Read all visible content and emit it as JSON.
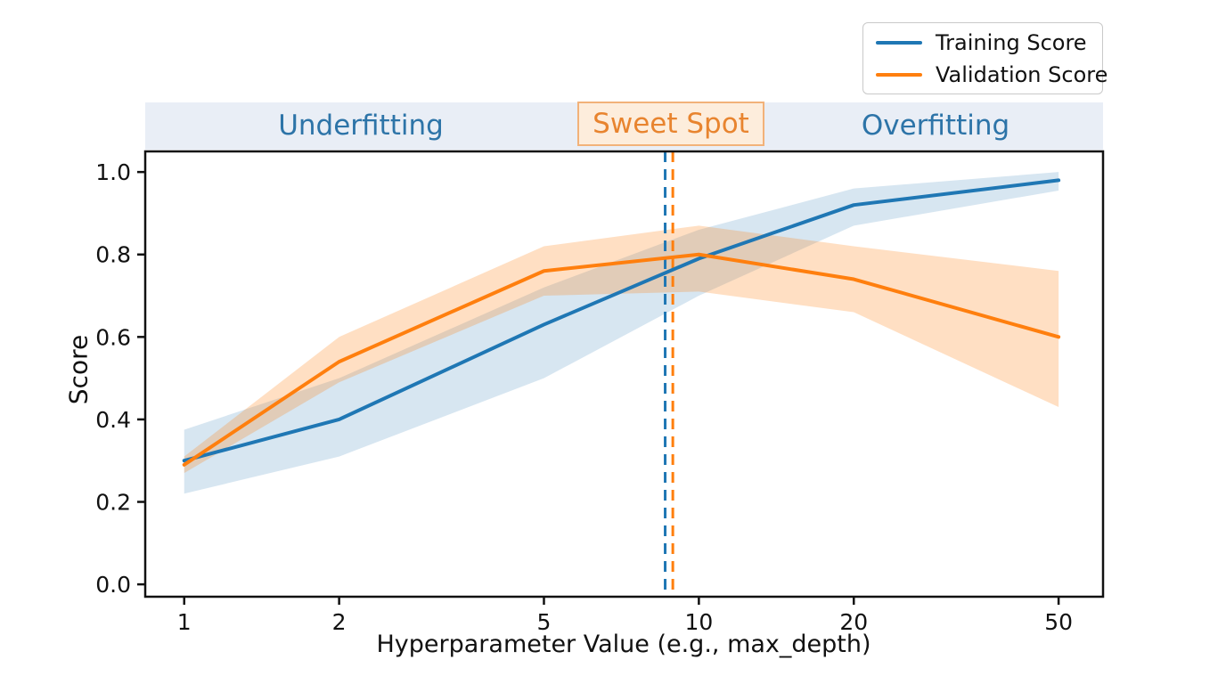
{
  "page": {
    "background": "#ffffff"
  },
  "legend": {
    "items": [
      {
        "label": "Training Score",
        "color": "#1f77b4"
      },
      {
        "label": "Validation Score",
        "color": "#ff7f0e"
      }
    ]
  },
  "regions": {
    "band_background": "#e9eef6",
    "underfitting": {
      "label": "Underfitting",
      "text_color": "#2d74a8"
    },
    "sweet_spot": {
      "label": "Sweet Spot",
      "text_color": "#e8842f",
      "box_background": "#fdeddc",
      "box_border": "#f2b279"
    },
    "overfitting": {
      "label": "Overfitting",
      "text_color": "#2d74a8"
    }
  },
  "chart_data": {
    "type": "line",
    "title": "",
    "xlabel": "Hyperparameter Value (e.g., max_depth)",
    "ylabel": "Score",
    "x_scale": "log",
    "x": [
      1,
      2,
      5,
      10,
      20,
      50
    ],
    "x_tick_labels": [
      "1",
      "2",
      "5",
      "10",
      "20",
      "50"
    ],
    "y_ticks": [
      0.0,
      0.2,
      0.4,
      0.6,
      0.8,
      1.0
    ],
    "y_tick_labels": [
      "0.0",
      "0.2",
      "0.4",
      "0.6",
      "0.8",
      "1.0"
    ],
    "xlim": [
      0.84,
      61
    ],
    "ylim": [
      -0.03,
      1.05
    ],
    "grid": false,
    "legend_position": "upper right",
    "series": [
      {
        "name": "Training Score",
        "color": "#1f77b4",
        "values": [
          0.3,
          0.4,
          0.63,
          0.79,
          0.92,
          0.98
        ],
        "band_lower": [
          0.22,
          0.31,
          0.5,
          0.7,
          0.87,
          0.955
        ],
        "band_upper": [
          0.375,
          0.5,
          0.72,
          0.86,
          0.96,
          1.0
        ],
        "band_opacity": 0.18
      },
      {
        "name": "Validation Score",
        "color": "#ff7f0e",
        "values": [
          0.29,
          0.54,
          0.76,
          0.8,
          0.74,
          0.6
        ],
        "band_lower": [
          0.27,
          0.49,
          0.7,
          0.71,
          0.66,
          0.43
        ],
        "band_upper": [
          0.31,
          0.6,
          0.82,
          0.87,
          0.82,
          0.76
        ],
        "band_opacity": 0.25
      }
    ],
    "vlines": [
      {
        "x": 8.6,
        "color": "#1f77b4",
        "style": "dashed"
      },
      {
        "x": 8.9,
        "color": "#ff7f0e",
        "style": "dashed"
      }
    ]
  }
}
